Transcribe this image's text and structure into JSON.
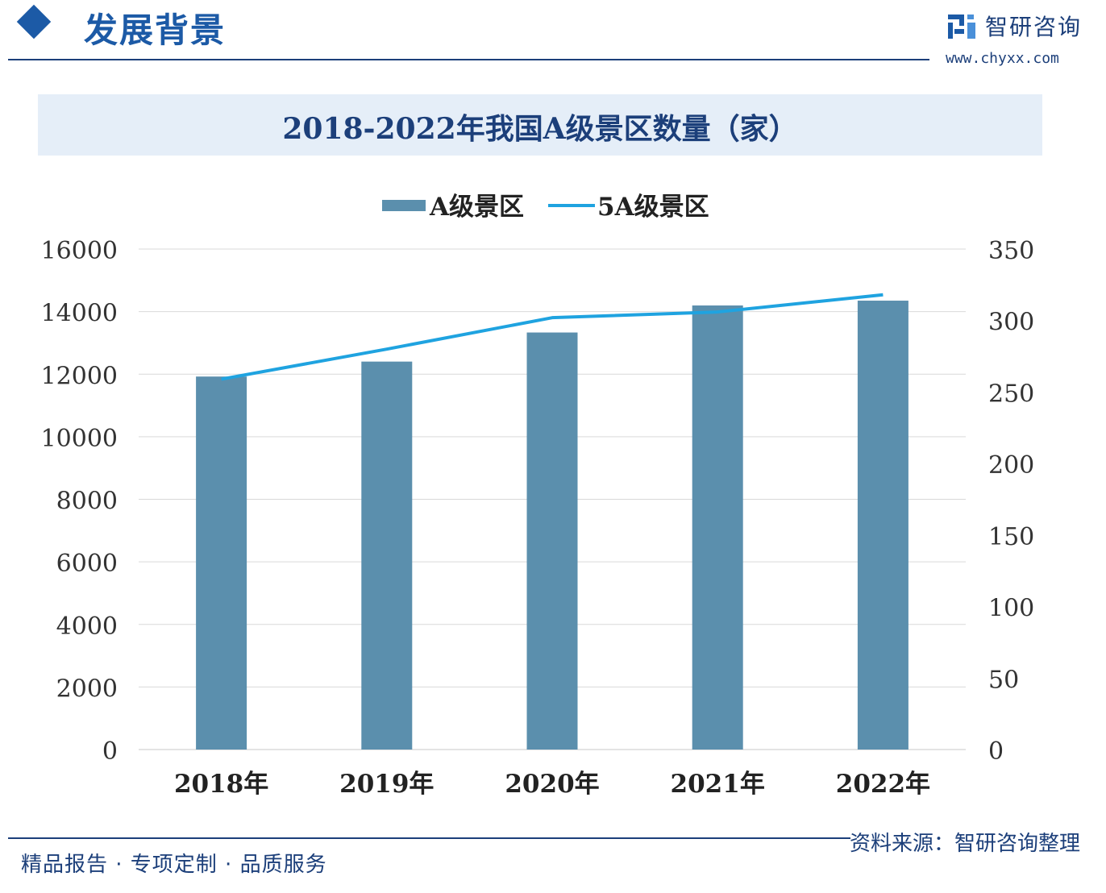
{
  "header": {
    "title": "发展背景"
  },
  "brand": {
    "name": "智研咨询",
    "url": "www.chyxx.com"
  },
  "chart_data": {
    "type": "bar",
    "title": "2018-2022年我国A级景区数量（家）",
    "categories": [
      "2018年",
      "2019年",
      "2020年",
      "2021年",
      "2022年"
    ],
    "series": [
      {
        "name": "A级景区",
        "type": "bar",
        "axis": "left",
        "color": "#5b8fad",
        "values": [
          11924,
          12402,
          13332,
          14196,
          14350
        ]
      },
      {
        "name": "5A级景区",
        "type": "line",
        "axis": "right",
        "color": "#1fa3e0",
        "values": [
          259,
          280,
          302,
          306,
          318
        ]
      }
    ],
    "y_left": {
      "min": 0,
      "max": 16000,
      "ticks": [
        "0",
        "2000",
        "4000",
        "6000",
        "8000",
        "10000",
        "12000",
        "14000",
        "16000"
      ]
    },
    "y_right": {
      "min": 0,
      "max": 350,
      "ticks": [
        "0",
        "50",
        "100",
        "150",
        "200",
        "250",
        "300",
        "350"
      ]
    },
    "grid": true,
    "legend_position": "top-center"
  },
  "source": "资料来源：智研咨询整理",
  "footer": "精品报告 · 专项定制 · 品质服务"
}
